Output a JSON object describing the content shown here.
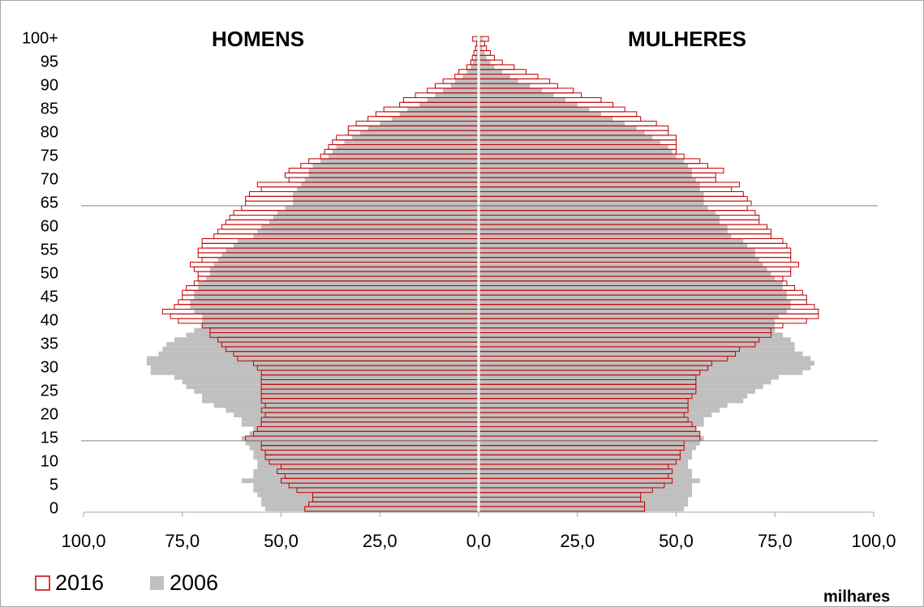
{
  "chart_data": {
    "type": "pyramid",
    "left_title": "HOMENS",
    "right_title": "MULHERES",
    "unit_label": "milhares",
    "categories": [
      0,
      null,
      null,
      null,
      null,
      5,
      null,
      null,
      null,
      null,
      10,
      null,
      null,
      null,
      null,
      15,
      null,
      null,
      null,
      null,
      20,
      null,
      null,
      null,
      null,
      25,
      null,
      null,
      null,
      null,
      30,
      null,
      null,
      null,
      null,
      35,
      null,
      null,
      null,
      null,
      40,
      null,
      null,
      null,
      null,
      45,
      null,
      null,
      null,
      null,
      50,
      null,
      null,
      null,
      null,
      55,
      null,
      null,
      null,
      null,
      60,
      null,
      null,
      null,
      null,
      65,
      null,
      null,
      null,
      null,
      70,
      null,
      null,
      null,
      null,
      75,
      null,
      null,
      null,
      null,
      80,
      null,
      null,
      null,
      null,
      85,
      null,
      null,
      null,
      null,
      90,
      null,
      null,
      null,
      null,
      95,
      null,
      null,
      null,
      null,
      "100+"
    ],
    "xlim": [
      -100,
      100
    ],
    "xticks": [
      {
        "value": -100,
        "label": "100,0"
      },
      {
        "value": -75,
        "label": "75,0"
      },
      {
        "value": -50,
        "label": "50,0"
      },
      {
        "value": -25,
        "label": "25,0"
      },
      {
        "value": 0,
        "label": "0,0"
      },
      {
        "value": 25,
        "label": "25,0"
      },
      {
        "value": 50,
        "label": "50,0"
      },
      {
        "value": 75,
        "label": "75,0"
      },
      {
        "value": 100,
        "label": "100,0"
      }
    ],
    "hlines": [
      14.5,
      64.5
    ],
    "series": [
      {
        "name": "2006",
        "color": "#bfbfbf",
        "filled": true,
        "men": [
          -54,
          -55,
          -55,
          -56,
          -57,
          -57,
          -60,
          -57,
          -57,
          -56,
          -56,
          -57,
          -57,
          -58,
          -59,
          -60,
          -58,
          -57,
          -60,
          -60,
          -62,
          -64,
          -67,
          -70,
          -70,
          -72,
          -74,
          -75,
          -77,
          -83,
          -83,
          -84,
          -84,
          -81,
          -80,
          -79,
          -77,
          -74,
          -72,
          -70,
          -70,
          -70,
          -72,
          -73,
          -73,
          -72,
          -72,
          -71,
          -71,
          -69,
          -68,
          -68,
          -67,
          -66,
          -65,
          -64,
          -62,
          -61,
          -57,
          -56,
          -55,
          -53,
          -52,
          -51,
          -49,
          -47,
          -47,
          -47,
          -46,
          -45,
          -44,
          -43,
          -43,
          -42,
          -40,
          -38,
          -37,
          -36,
          -34,
          -32,
          -30,
          -28,
          -25,
          -22,
          -20,
          -18,
          -15,
          -13,
          -11,
          -9,
          -7,
          -6,
          -4,
          -3,
          -2,
          -1.5,
          -1,
          -0.7,
          -0.5,
          -0.3,
          -0.5
        ],
        "women": [
          52,
          53,
          53,
          54,
          54,
          54,
          56,
          54,
          54,
          53,
          53,
          54,
          54,
          55,
          56,
          57,
          56,
          55,
          57,
          57,
          59,
          61,
          63,
          67,
          68,
          70,
          72,
          74,
          76,
          82,
          84,
          85,
          84,
          82,
          80,
          80,
          79,
          77,
          75,
          75,
          75,
          76,
          78,
          79,
          79,
          78,
          78,
          77,
          77,
          75,
          74,
          73,
          72,
          71,
          70,
          70,
          68,
          67,
          64,
          63,
          63,
          61,
          61,
          60,
          58,
          57,
          57,
          57,
          56,
          56,
          55,
          54,
          54,
          53,
          52,
          50,
          49,
          48,
          46,
          44,
          42,
          40,
          37,
          34,
          31,
          28,
          25,
          22,
          19,
          16,
          13,
          10,
          8,
          6,
          4,
          3,
          2,
          1.5,
          1,
          0.6,
          1
        ]
      },
      {
        "name": "2016",
        "color": "#c00000",
        "filled": false,
        "men": [
          -44,
          -43,
          -42,
          -42,
          -46,
          -48,
          -50,
          -49,
          -51,
          -50,
          -53,
          -54,
          -54,
          -55,
          -55,
          -59,
          -57,
          -56,
          -55,
          -55,
          -54,
          -55,
          -54,
          -55,
          -55,
          -55,
          -55,
          -55,
          -55,
          -55,
          -56,
          -57,
          -61,
          -62,
          -64,
          -65,
          -66,
          -68,
          -68,
          -70,
          -76,
          -78,
          -80,
          -77,
          -76,
          -75,
          -75,
          -74,
          -72,
          -71,
          -71,
          -72,
          -73,
          -70,
          -71,
          -71,
          -70,
          -70,
          -67,
          -66,
          -65,
          -64,
          -63,
          -62,
          -60,
          -59,
          -59,
          -58,
          -55,
          -56,
          -48,
          -49,
          -48,
          -45,
          -43,
          -40,
          -39,
          -38,
          -37,
          -36,
          -33,
          -33,
          -31,
          -28,
          -26,
          -24,
          -20,
          -19,
          -16,
          -13,
          -11,
          -9,
          -6,
          -5,
          -3,
          -2,
          -1.6,
          -1.2,
          -0.8,
          -0.5,
          -1.5
        ],
        "women": [
          42,
          42,
          41,
          41,
          44,
          47,
          49,
          48,
          49,
          48,
          50,
          51,
          51,
          52,
          52,
          56,
          56,
          55,
          54,
          53,
          52,
          53,
          53,
          53,
          54,
          55,
          55,
          55,
          55,
          56,
          58,
          59,
          63,
          65,
          66,
          70,
          71,
          74,
          74,
          77,
          83,
          86,
          86,
          85,
          83,
          83,
          82,
          80,
          78,
          77,
          79,
          79,
          81,
          79,
          79,
          79,
          78,
          77,
          74,
          74,
          73,
          71,
          71,
          70,
          68,
          69,
          68,
          67,
          64,
          66,
          60,
          60,
          62,
          58,
          56,
          52,
          50,
          50,
          50,
          50,
          48,
          48,
          45,
          41,
          40,
          37,
          34,
          31,
          26,
          24,
          20,
          18,
          15,
          12,
          9,
          6,
          4,
          3,
          2,
          1.5,
          2.5
        ]
      }
    ],
    "legend_order": [
      1,
      0
    ]
  }
}
